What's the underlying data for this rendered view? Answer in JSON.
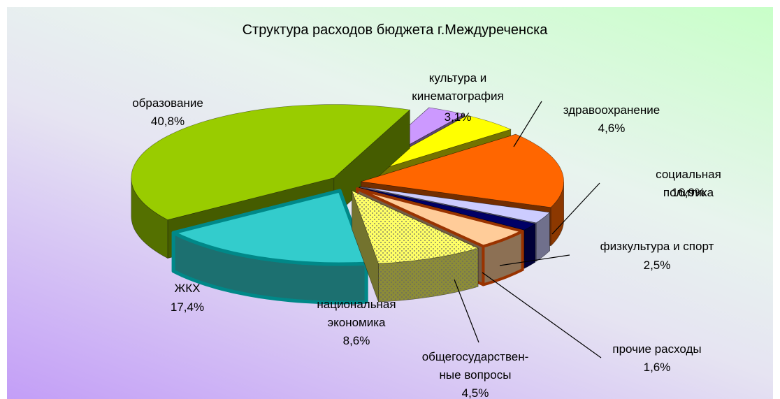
{
  "chart_data": {
    "type": "pie3d",
    "title": "Структура расходов бюджета г.Междуреченска",
    "categories": [
      "культура и\nкинематография",
      "здравоохранение",
      "социальная политика",
      "физкультура  и спорт",
      "прочие расходы",
      "общегосударствен-\nные вопросы",
      "национальная\nэкономика",
      "ЖКХ",
      "образование"
    ],
    "values": [
      3.1,
      4.6,
      16.9,
      2.5,
      1.6,
      4.5,
      8.6,
      17.4,
      40.8
    ],
    "value_labels": [
      "3,1%",
      "4,6%",
      "16,9%",
      "2,5%",
      "1,6%",
      "4,5%",
      "8,6%",
      "17,4%",
      "40,8%"
    ],
    "colors": [
      "#cc99ff",
      "#ffff00",
      "#ff6600",
      "#ccccff",
      "#000066",
      "#ffcc99",
      "#ffff66",
      "#33cccc",
      "#99cc00"
    ]
  }
}
